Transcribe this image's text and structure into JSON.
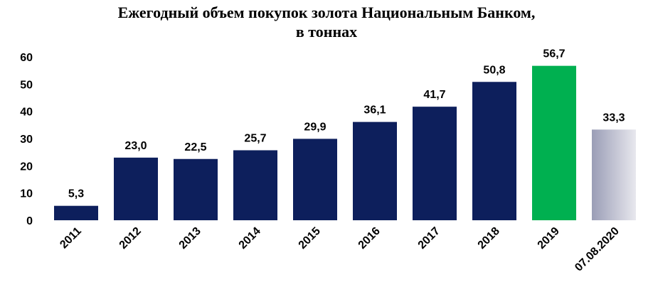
{
  "chart_data": {
    "type": "bar",
    "title_line1": "Ежегодный объем покупок золота Национальным Банком,",
    "title_line2": "в тоннах",
    "xlabel": "",
    "ylabel": "",
    "categories": [
      "2011",
      "2012",
      "2013",
      "2014",
      "2015",
      "2016",
      "2017",
      "2018",
      "2019",
      "07.08.2020"
    ],
    "values": [
      5.3,
      23.0,
      22.5,
      25.7,
      29.9,
      36.1,
      41.7,
      50.8,
      56.7,
      33.3
    ],
    "value_labels": [
      "5,3",
      "23,0",
      "22,5",
      "25,7",
      "29,9",
      "36,1",
      "41,7",
      "50,8",
      "56,7",
      "33,3"
    ],
    "yticks": [
      "0",
      "10",
      "20",
      "30",
      "40",
      "50",
      "60"
    ],
    "ylim": [
      0,
      60
    ],
    "grid": false,
    "legend": "none",
    "colors": {
      "default": "#0d1f5c",
      "highlight": "#00b050",
      "partial_from": "#9a9db6",
      "partial_to": "#e8e8ee"
    },
    "bar_styles": [
      "default",
      "default",
      "default",
      "default",
      "default",
      "default",
      "default",
      "default",
      "highlight",
      "partial"
    ]
  }
}
